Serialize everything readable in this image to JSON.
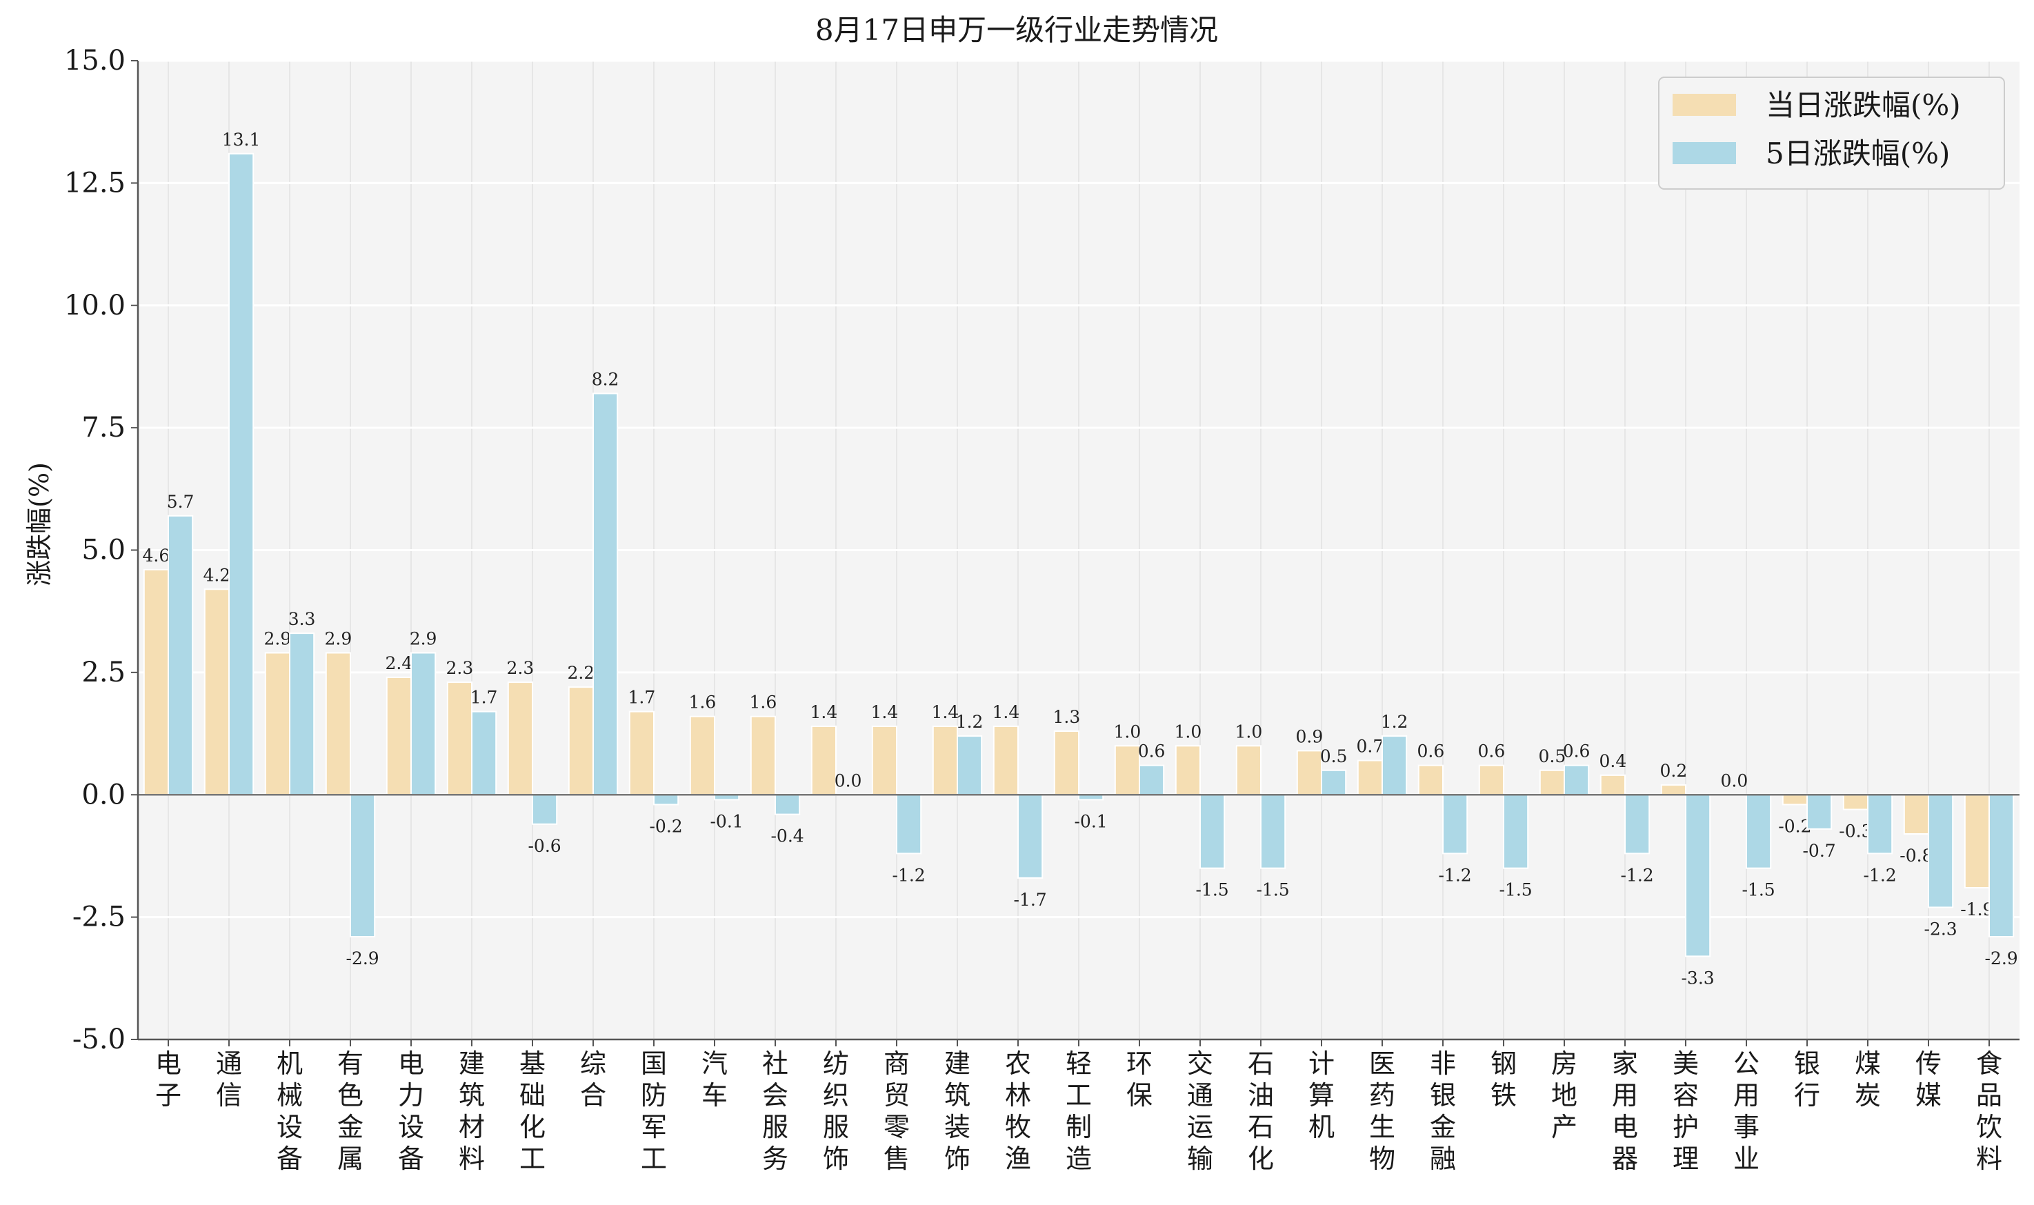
{
  "chart_data": {
    "type": "bar",
    "title": "8月17日申万一级行业走势情况",
    "xlabel": "",
    "ylabel": "涨跌幅(%)",
    "ylim": [
      -5.0,
      15.0
    ],
    "yticks": [
      "-5.0",
      "-2.5",
      "0.0",
      "2.5",
      "5.0",
      "7.5",
      "10.0",
      "12.5",
      "15.0"
    ],
    "grid": true,
    "legend_position": "top-right",
    "categories": [
      "电子",
      "通信",
      "机械设备",
      "有色金属",
      "电力设备",
      "建筑材料",
      "基础化工",
      "综合",
      "国防军工",
      "汽车",
      "社会服务",
      "纺织服饰",
      "商贸零售",
      "建筑装饰",
      "农林牧渔",
      "轻工制造",
      "环保",
      "交通运输",
      "石油石化",
      "计算机",
      "医药生物",
      "非银金融",
      "钢铁",
      "房地产",
      "家用电器",
      "美容护理",
      "公用事业",
      "银行",
      "煤炭",
      "传媒",
      "食品饮料"
    ],
    "series": [
      {
        "name": "当日涨跌幅(%)",
        "color": "#f5deb3",
        "values": [
          4.6,
          4.2,
          2.9,
          2.9,
          2.4,
          2.3,
          2.3,
          2.2,
          1.7,
          1.6,
          1.6,
          1.4,
          1.4,
          1.4,
          1.4,
          1.3,
          1.0,
          1.0,
          1.0,
          0.9,
          0.7,
          0.6,
          0.6,
          0.5,
          0.4,
          0.2,
          0.0,
          -0.2,
          -0.3,
          -0.8,
          -1.9
        ],
        "labels": [
          "4.6",
          "4.2",
          "2.9",
          "2.9",
          "2.4",
          "2.3",
          "2.3",
          "2.2",
          "1.7",
          "1.6",
          "1.6",
          "1.4",
          "1.4",
          "1.4",
          "1.4",
          "1.3",
          "1.0",
          "1.0",
          "1.0",
          "0.9",
          "0.7",
          "0.6",
          "0.6",
          "0.5",
          "0.4",
          "0.2",
          "0.0",
          "-0.2",
          "-0.3",
          "-0.8",
          "-1.9"
        ]
      },
      {
        "name": "5日涨跌幅(%)",
        "color": "#add8e6",
        "values": [
          5.7,
          13.1,
          3.3,
          -2.9,
          2.9,
          1.7,
          -0.6,
          8.2,
          -0.2,
          -0.1,
          -0.4,
          0.0,
          -1.2,
          1.2,
          -1.7,
          -0.1,
          0.6,
          -1.5,
          -1.5,
          0.5,
          1.2,
          -1.2,
          -1.5,
          0.6,
          -1.2,
          -3.3,
          -1.5,
          -0.7,
          -1.2,
          -2.3,
          -2.9
        ],
        "labels": [
          "5.7",
          "13.1",
          "3.3",
          "-2.9",
          "2.9",
          "1.7",
          "-0.6",
          "8.2",
          "-0.2",
          "-0.1",
          "-0.4",
          "0.0",
          "-1.2",
          "1.2",
          "-1.7",
          "-0.1",
          "0.6",
          "-1.5",
          "-1.5",
          "0.5",
          "1.2",
          "-1.2",
          "-1.5",
          "0.6",
          "-1.2",
          "-3.3",
          "-1.5",
          "-0.7",
          "-1.2",
          "-2.3",
          "-2.9"
        ]
      }
    ],
    "colors": {
      "plot_background": "#f4f4f4",
      "grid": "#ffffff",
      "axis": "#555555"
    }
  }
}
